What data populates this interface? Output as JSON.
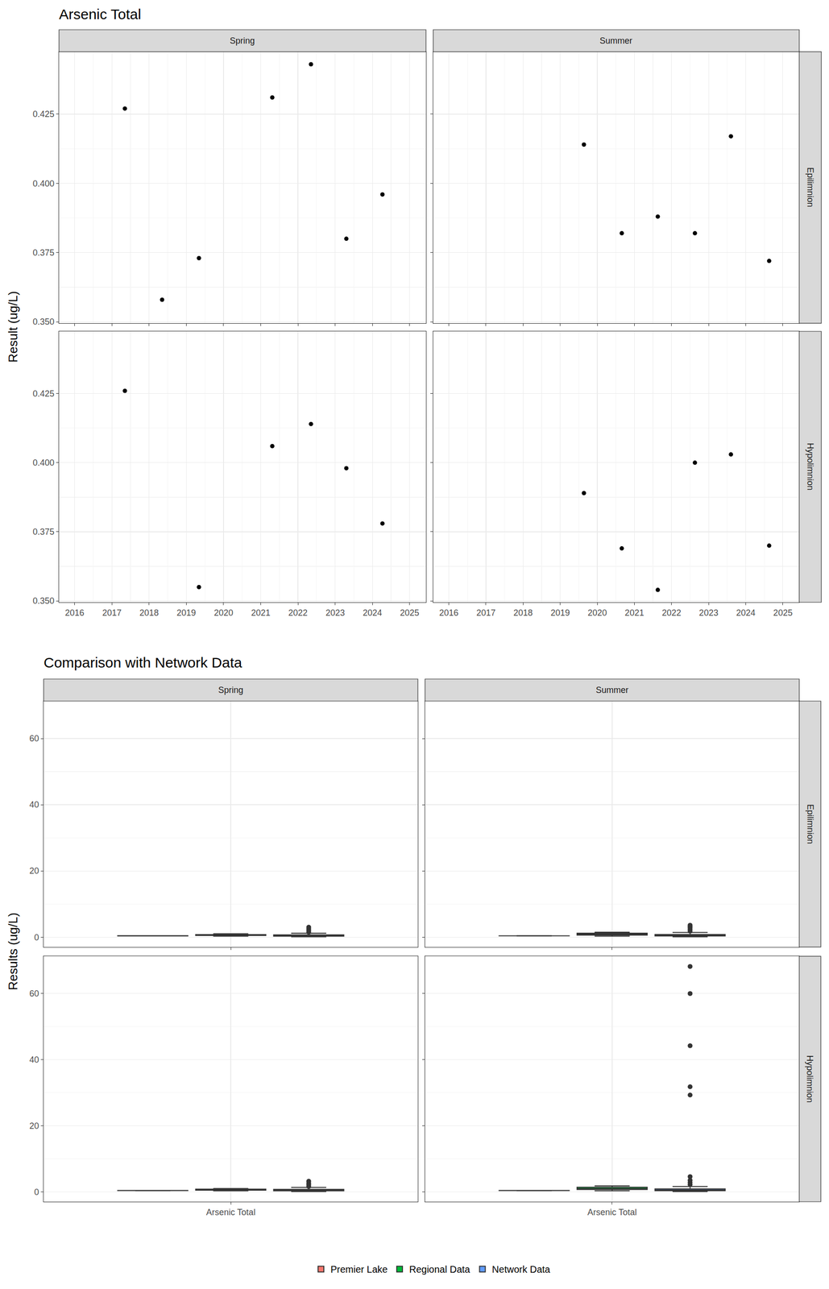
{
  "chart_data": [
    {
      "type": "scatter",
      "title": "Arsenic Total",
      "y_label": "Result (ug/L)",
      "columns": [
        "Spring",
        "Summer"
      ],
      "rows": [
        "Epilimnion",
        "Hypolimnion"
      ],
      "color": "#000000",
      "marker": "circle",
      "grid": true,
      "xlim": [
        2015.58,
        2025.44
      ],
      "xticks": [
        2016,
        2017,
        2018,
        2019,
        2020,
        2021,
        2022,
        2023,
        2024,
        2025
      ],
      "ylim": [
        0.3495,
        0.4475
      ],
      "yticks": [
        {
          "value": 0.35,
          "label": "0.350"
        },
        0.375,
        {
          "value": 0.4,
          "label": "0.400"
        },
        0.425
      ],
      "panels": [
        {
          "column": "Spring",
          "row": "Epilimnion",
          "x": [
            2017.35,
            2018.35,
            2019.34,
            2021.31,
            2022.35,
            2023.3,
            2024.27
          ],
          "values": [
            0.427,
            0.358,
            0.373,
            0.431,
            0.443,
            0.38,
            0.396
          ]
        },
        {
          "column": "Summer",
          "row": "Epilimnion",
          "x": [
            2019.64,
            2020.66,
            2021.63,
            2022.63,
            2023.6,
            2024.63
          ],
          "values": [
            0.414,
            0.382,
            0.388,
            0.382,
            0.417,
            0.372
          ]
        },
        {
          "column": "Spring",
          "row": "Hypolimnion",
          "x": [
            2017.35,
            2019.34,
            2021.31,
            2022.35,
            2023.3,
            2024.27
          ],
          "values": [
            0.426,
            0.355,
            0.406,
            0.414,
            0.398,
            0.378
          ]
        },
        {
          "column": "Summer",
          "row": "Hypolimnion",
          "x": [
            2019.64,
            2020.66,
            2021.63,
            2022.63,
            2023.6,
            2024.63
          ],
          "values": [
            0.389,
            0.369,
            0.354,
            0.4,
            0.403,
            0.37
          ]
        }
      ]
    },
    {
      "type": "box",
      "title": "Comparison with Network Data",
      "y_label": "Results (ug/L)",
      "categories": [
        "Arsenic Total"
      ],
      "columns": [
        "Spring",
        "Summer"
      ],
      "rows": [
        "Epilimnion",
        "Hypolimnion"
      ],
      "grid": true,
      "legend": "bottom",
      "ylim": [
        -3.0,
        71.3
      ],
      "yticks": [
        0,
        20,
        40,
        60
      ],
      "series": [
        {
          "name": "Premier Lake",
          "color": "#F8766D",
          "panels": [
            {
              "column": "Spring",
              "row": "Epilimnion",
              "lowerfence": 0.358,
              "q1": 0.377,
              "median": 0.396,
              "q3": 0.429,
              "upperfence": 0.443,
              "outliers": []
            },
            {
              "column": "Summer",
              "row": "Epilimnion",
              "lowerfence": 0.372,
              "q1": 0.382,
              "median": 0.385,
              "q3": 0.409,
              "upperfence": 0.417,
              "outliers": []
            },
            {
              "column": "Spring",
              "row": "Hypolimnion",
              "lowerfence": 0.355,
              "q1": 0.383,
              "median": 0.402,
              "q3": 0.412,
              "upperfence": 0.426,
              "outliers": []
            },
            {
              "column": "Summer",
              "row": "Hypolimnion",
              "lowerfence": 0.354,
              "q1": 0.369,
              "median": 0.38,
              "q3": 0.398,
              "upperfence": 0.403,
              "outliers": []
            }
          ]
        },
        {
          "name": "Regional Data",
          "color": "#00BA38",
          "panels": [
            {
              "column": "Spring",
              "row": "Epilimnion",
              "lowerfence": 0.3,
              "q1": 0.5,
              "median": 0.6,
              "q3": 0.75,
              "upperfence": 1.0,
              "outliers": []
            },
            {
              "column": "Summer",
              "row": "Epilimnion",
              "lowerfence": 0.3,
              "q1": 0.6,
              "median": 0.9,
              "q3": 1.2,
              "upperfence": 1.5,
              "outliers": []
            },
            {
              "column": "Spring",
              "row": "Hypolimnion",
              "lowerfence": 0.3,
              "q1": 0.5,
              "median": 0.65,
              "q3": 0.8,
              "upperfence": 1.0,
              "outliers": []
            },
            {
              "column": "Summer",
              "row": "Hypolimnion",
              "lowerfence": 0.3,
              "q1": 0.7,
              "median": 1.0,
              "q3": 1.4,
              "upperfence": 1.8,
              "outliers": []
            }
          ]
        },
        {
          "name": "Network Data",
          "color": "#619CFF",
          "panels": [
            {
              "column": "Spring",
              "row": "Epilimnion",
              "lowerfence": 0.1,
              "q1": 0.3,
              "median": 0.45,
              "q3": 0.7,
              "upperfence": 1.2,
              "outliers": [
                1.5,
                2.0,
                2.5,
                3.0
              ]
            },
            {
              "column": "Summer",
              "row": "Epilimnion",
              "lowerfence": 0.1,
              "q1": 0.35,
              "median": 0.5,
              "q3": 0.8,
              "upperfence": 1.4,
              "outliers": [
                1.8,
                2.3,
                2.8,
                3.2,
                3.6
              ]
            },
            {
              "column": "Spring",
              "row": "Hypolimnion",
              "lowerfence": 0.1,
              "q1": 0.3,
              "median": 0.45,
              "q3": 0.75,
              "upperfence": 1.3,
              "outliers": [
                1.6,
                2.1,
                2.6,
                3.2
              ]
            },
            {
              "column": "Summer",
              "row": "Hypolimnion",
              "lowerfence": 0.1,
              "q1": 0.35,
              "median": 0.55,
              "q3": 0.9,
              "upperfence": 1.6,
              "outliers": [
                2.2,
                2.8,
                3.5,
                4.6,
                29.3,
                31.8,
                44.2,
                60.0,
                68.2
              ]
            }
          ]
        }
      ]
    }
  ]
}
